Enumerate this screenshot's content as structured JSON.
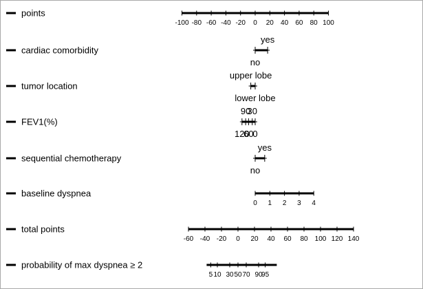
{
  "chart_data": {
    "type": "nomogram",
    "rows": [
      {
        "id": "points",
        "label": "points",
        "kind": "scale",
        "min": -100,
        "max": 100,
        "major": [
          -100,
          -80,
          -60,
          -40,
          -20,
          0,
          20,
          40,
          60,
          80,
          100
        ],
        "tick_labels": [
          "-100",
          "-80",
          "-60",
          "-40",
          "-20",
          "0",
          "20",
          "40",
          "60",
          "80",
          "100"
        ]
      },
      {
        "id": "cardiac-comorbidity",
        "label": "cardiac comorbidity",
        "kind": "categorical",
        "categories": [
          {
            "text": "no",
            "points": 0,
            "side": "below"
          },
          {
            "text": "yes",
            "points": 17,
            "side": "above"
          }
        ]
      },
      {
        "id": "tumor-location",
        "label": "tumor location",
        "kind": "categorical",
        "categories": [
          {
            "text": "upper lobe",
            "points": -6,
            "side": "above"
          },
          {
            "text": "lower lobe",
            "points": 0,
            "side": "below"
          }
        ]
      },
      {
        "id": "fev1",
        "label": "FEV1(%)",
        "kind": "categorical",
        "categories": [
          {
            "text": "120",
            "points": -18,
            "side": "below"
          },
          {
            "text": "90",
            "points": -13,
            "side": "above"
          },
          {
            "text": "60",
            "points": -9,
            "side": "below"
          },
          {
            "text": "30",
            "points": -4,
            "side": "above"
          },
          {
            "text": "0",
            "points": 0,
            "side": "below"
          }
        ]
      },
      {
        "id": "sequential-chemotherapy",
        "label": "sequential chemotherapy",
        "kind": "categorical",
        "categories": [
          {
            "text": "no",
            "points": 0,
            "side": "below"
          },
          {
            "text": "yes",
            "points": 13,
            "side": "above"
          }
        ]
      },
      {
        "id": "baseline-dyspnea",
        "label": "baseline dyspnea",
        "kind": "scale",
        "min": 0,
        "max": 4,
        "points_min": 0,
        "points_max": 80,
        "major": [
          0,
          1,
          2,
          3,
          4
        ],
        "tick_labels": [
          "0",
          "1",
          "2",
          "3",
          "4"
        ]
      },
      {
        "id": "total-points",
        "label": "total points",
        "kind": "scale",
        "min": -60,
        "max": 140,
        "major": [
          -60,
          -40,
          -20,
          0,
          20,
          40,
          60,
          80,
          100,
          120,
          140
        ],
        "tick_labels": [
          "-60",
          "-40",
          "-20",
          "0",
          "20",
          "40",
          "60",
          "80",
          "100",
          "120",
          "140"
        ]
      },
      {
        "id": "probability",
        "label": "probability of max dyspnea ≥ 2",
        "kind": "probability",
        "min_total": -38,
        "max_total": 47,
        "labeled": [
          {
            "text": "5",
            "total": -33
          },
          {
            "text": "10",
            "total": -25
          },
          {
            "text": "30",
            "total": -10
          },
          {
            "text": "50",
            "total": 0
          },
          {
            "text": "70",
            "total": 10
          },
          {
            "text": "90",
            "total": 25
          },
          {
            "text": "95",
            "total": 33
          }
        ]
      }
    ]
  }
}
